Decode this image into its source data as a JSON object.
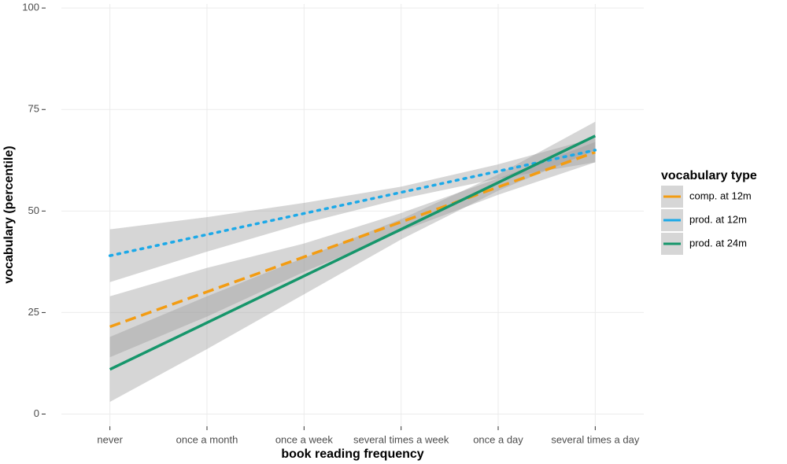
{
  "chart_data": {
    "type": "line",
    "x_label": "book reading frequency",
    "y_label": "vocabulary (percentile)",
    "legend_title": "vocabulary type",
    "legend_position": "right",
    "categories": [
      "never",
      "once a month",
      "once a week",
      "several times a week",
      "once a day",
      "several times a day"
    ],
    "ylim": [
      -3,
      101
    ],
    "yticks": [
      0,
      25,
      50,
      75,
      100
    ],
    "grid": true,
    "band_color": "#999999",
    "series": [
      {
        "name": "comp. at 12m",
        "color": "#f39c12",
        "linetype": "dashed",
        "values": [
          21.5,
          30.1,
          38.7,
          47.3,
          55.9,
          64.5
        ],
        "lower": [
          14,
          24,
          35,
          45,
          54,
          62
        ],
        "upper": [
          29,
          36,
          42,
          49.5,
          58,
          67
        ]
      },
      {
        "name": "prod. at 12m",
        "color": "#1ca9e8",
        "linetype": "dotted",
        "values": [
          39,
          44.2,
          49.4,
          54.6,
          59.8,
          65
        ],
        "lower": [
          32.5,
          40,
          47,
          53,
          58,
          62
        ],
        "upper": [
          45.5,
          48.5,
          52,
          56,
          61.5,
          68
        ]
      },
      {
        "name": "prod. at 24m",
        "color": "#16966b",
        "linetype": "solid",
        "values": [
          11,
          22.5,
          34,
          45.5,
          57,
          68.5
        ],
        "lower": [
          3,
          16,
          29.5,
          43,
          55,
          65
        ],
        "upper": [
          19,
          29,
          38.5,
          48,
          59,
          72
        ]
      }
    ]
  }
}
